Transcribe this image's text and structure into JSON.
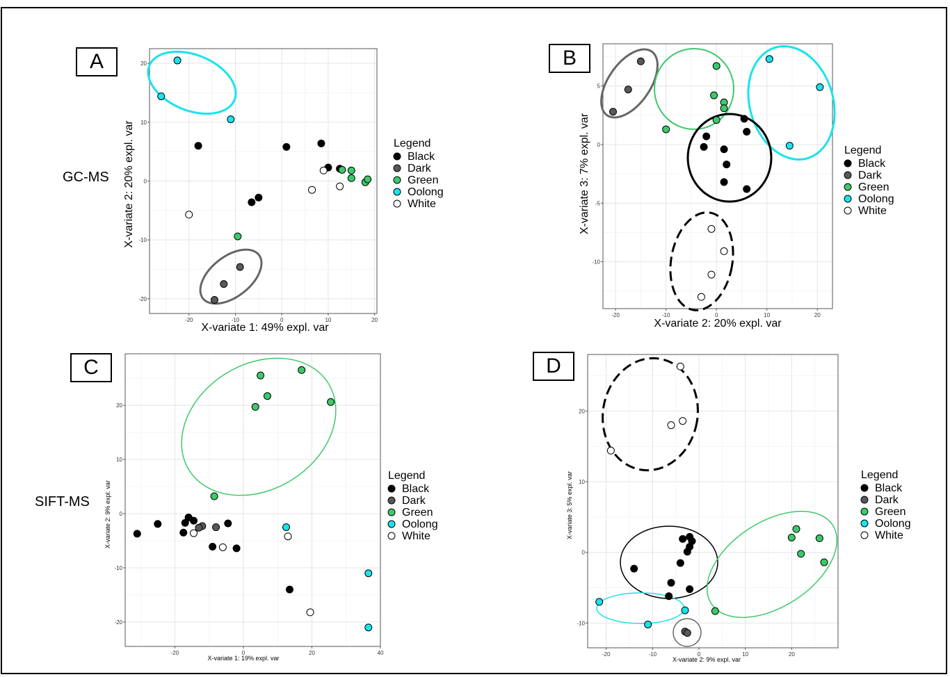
{
  "figure": {
    "panel_labels": [
      "A",
      "B",
      "C",
      "D"
    ],
    "side_labels": {
      "A": "GC-MS",
      "C": "SIFT-MS"
    }
  },
  "legend": {
    "title": "Legend",
    "entries": [
      {
        "name": "Black",
        "color": "#000000"
      },
      {
        "name": "Dark",
        "color": "#595959"
      },
      {
        "name": "Green",
        "color": "#3cc96a"
      },
      {
        "name": "Oolong",
        "color": "#19e3ec"
      },
      {
        "name": "White",
        "color": "#ffffff"
      }
    ]
  },
  "chart_data": [
    {
      "panel": "A",
      "type": "scatter",
      "xlabel": "X-variate 1: 49% expl. var",
      "ylabel": "X-variate 2: 20% expl. var",
      "xlim": [
        -28.5,
        20.5
      ],
      "ylim": [
        -22.5,
        22.5
      ],
      "xticks": [
        -20,
        -10,
        0,
        10,
        20
      ],
      "yticks": [
        -20,
        -10,
        0,
        10,
        20
      ],
      "grid": true,
      "legend_position": "right",
      "series": [
        {
          "name": "Black",
          "points": [
            [
              -18,
              6
            ],
            [
              1,
              5.8
            ],
            [
              8.5,
              6.4
            ],
            [
              10,
              2.3
            ],
            [
              12.5,
              2.1
            ],
            [
              -6.5,
              -3.6
            ],
            [
              -5,
              -2.8
            ]
          ]
        },
        {
          "name": "Dark",
          "points": [
            [
              -9,
              -14.6
            ],
            [
              -12.5,
              -17.5
            ],
            [
              -14.5,
              -20.2
            ]
          ]
        },
        {
          "name": "Green",
          "points": [
            [
              -9.5,
              -9.4
            ],
            [
              13,
              1.9
            ],
            [
              15,
              1.8
            ],
            [
              15,
              0.5
            ],
            [
              18,
              -0.2
            ],
            [
              18.5,
              0.3
            ]
          ]
        },
        {
          "name": "Oolong",
          "points": [
            [
              -22.5,
              20.5
            ],
            [
              -26,
              14.4
            ],
            [
              -11,
              10.5
            ]
          ]
        },
        {
          "name": "White",
          "points": [
            [
              -20,
              -5.7
            ],
            [
              6.5,
              -1.5
            ],
            [
              9,
              1.8
            ],
            [
              12.5,
              -0.9
            ]
          ]
        }
      ],
      "ellipses": [
        {
          "group": "Oolong",
          "style": "solid"
        },
        {
          "group": "Dark",
          "style": "solid"
        }
      ]
    },
    {
      "panel": "B",
      "type": "scatter",
      "xlabel": "X-variate 2: 20% expl. var",
      "ylabel": "X-variate 3: 7% expl. var",
      "xlim": [
        -22.5,
        23
      ],
      "ylim": [
        -14,
        8.6
      ],
      "xticks": [
        -20,
        -10,
        0,
        10,
        20
      ],
      "yticks": [
        -10,
        -5,
        0,
        5
      ],
      "grid": true,
      "legend_position": "right",
      "series": [
        {
          "name": "Black",
          "points": [
            [
              -2,
              0.7
            ],
            [
              -2.5,
              -0.2
            ],
            [
              1.5,
              -0.4
            ],
            [
              2,
              -1.7
            ],
            [
              1.5,
              -3.2
            ],
            [
              6,
              1.1
            ],
            [
              5.5,
              2.2
            ],
            [
              6,
              -3.8
            ]
          ]
        },
        {
          "name": "Dark",
          "points": [
            [
              -15,
              7.1
            ],
            [
              -17.5,
              4.7
            ],
            [
              -20.5,
              2.8
            ]
          ]
        },
        {
          "name": "Green",
          "points": [
            [
              0,
              6.7
            ],
            [
              -0.5,
              4.2
            ],
            [
              1.5,
              3.6
            ],
            [
              1.5,
              3.1
            ],
            [
              0,
              2.1
            ],
            [
              -10,
              1.3
            ]
          ]
        },
        {
          "name": "Oolong",
          "points": [
            [
              10.5,
              7.3
            ],
            [
              20.5,
              4.9
            ],
            [
              14.5,
              -0.1
            ]
          ]
        },
        {
          "name": "White",
          "points": [
            [
              -1,
              -7.2
            ],
            [
              1.5,
              -9.1
            ],
            [
              -1,
              -11.1
            ],
            [
              -3,
              -13
            ]
          ]
        }
      ],
      "ellipses": [
        {
          "group": "Dark",
          "style": "solid"
        },
        {
          "group": "Green",
          "style": "solid"
        },
        {
          "group": "Oolong",
          "style": "solid"
        },
        {
          "group": "Black",
          "style": "solid"
        },
        {
          "group": "White",
          "style": "dashed"
        }
      ]
    },
    {
      "panel": "C",
      "type": "scatter",
      "xlabel": "X-variate 1: 19% expl. var",
      "ylabel": "X-variate 2: 9% expl. var",
      "xlim": [
        -34.5,
        40
      ],
      "ylim": [
        -24.5,
        29.5
      ],
      "xticks": [
        -20,
        0,
        20,
        40
      ],
      "yticks": [
        -20,
        -10,
        0,
        10,
        20
      ],
      "grid": true,
      "legend_position": "right",
      "series": [
        {
          "name": "Black",
          "points": [
            [
              -31,
              -3.7
            ],
            [
              -25,
              -1.9
            ],
            [
              -17.5,
              -3.5
            ],
            [
              -16,
              -0.7
            ],
            [
              -17,
              -1.7
            ],
            [
              -14.5,
              -1.3
            ],
            [
              -9,
              -6.1
            ],
            [
              -4.5,
              -1.8
            ],
            [
              -2,
              -6.4
            ],
            [
              13.5,
              -14
            ]
          ]
        },
        {
          "name": "Dark",
          "points": [
            [
              -12,
              -2.3
            ],
            [
              -8,
              -2.5
            ],
            [
              -13,
              -2.6
            ]
          ]
        },
        {
          "name": "Green",
          "points": [
            [
              5,
              25.5
            ],
            [
              17,
              26.5
            ],
            [
              7,
              21.7
            ],
            [
              25.5,
              20.6
            ],
            [
              3.5,
              19.7
            ],
            [
              -8.5,
              3.2
            ]
          ]
        },
        {
          "name": "Oolong",
          "points": [
            [
              12.5,
              -2.5
            ],
            [
              36.5,
              -11
            ],
            [
              36.5,
              -21
            ]
          ]
        },
        {
          "name": "White",
          "points": [
            [
              -14.5,
              -3.6
            ],
            [
              13,
              -4.2
            ],
            [
              -6,
              -6.2
            ],
            [
              19.5,
              -18.2
            ]
          ]
        }
      ],
      "ellipses": [
        {
          "group": "Green",
          "style": "solid"
        }
      ]
    },
    {
      "panel": "D",
      "type": "scatter",
      "xlabel": "X-variate 2: 9% expl. var",
      "ylabel": "X-variate 3: 5% expl. var",
      "xlim": [
        -24,
        30
      ],
      "ylim": [
        -13.5,
        28
      ],
      "xticks": [
        -20,
        -10,
        0,
        10,
        20
      ],
      "yticks": [
        -10,
        0,
        10,
        20
      ],
      "grid": true,
      "legend_position": "right",
      "series": [
        {
          "name": "Black",
          "points": [
            [
              -2,
              2.2
            ],
            [
              -1.5,
              1.6
            ],
            [
              -3.5,
              1.9
            ],
            [
              -2,
              0.8
            ],
            [
              -2.5,
              0.1
            ],
            [
              -4,
              -1.5
            ],
            [
              -14,
              -2.3
            ],
            [
              -6,
              -4.3
            ],
            [
              -2,
              -5.2
            ],
            [
              -6.5,
              -6.2
            ]
          ]
        },
        {
          "name": "Dark",
          "points": [
            [
              -3,
              -11.2
            ],
            [
              -2.5,
              -11.4
            ]
          ]
        },
        {
          "name": "Green",
          "points": [
            [
              21,
              3.3
            ],
            [
              20,
              2.1
            ],
            [
              26,
              2
            ],
            [
              22,
              -0.2
            ],
            [
              27,
              -1.4
            ],
            [
              3.5,
              -8.3
            ]
          ]
        },
        {
          "name": "Oolong",
          "points": [
            [
              -21.5,
              -7
            ],
            [
              -11,
              -10.2
            ],
            [
              -3,
              -8.2
            ]
          ]
        },
        {
          "name": "White",
          "points": [
            [
              -4,
              26.3
            ],
            [
              -19,
              14.4
            ],
            [
              -6,
              18
            ],
            [
              -3.5,
              18.6
            ]
          ]
        }
      ],
      "ellipses": [
        {
          "group": "White",
          "style": "dashed"
        },
        {
          "group": "Black",
          "style": "solid"
        },
        {
          "group": "Green",
          "style": "solid"
        },
        {
          "group": "Oolong",
          "style": "solid"
        },
        {
          "group": "Dark",
          "style": "solid"
        }
      ]
    }
  ]
}
